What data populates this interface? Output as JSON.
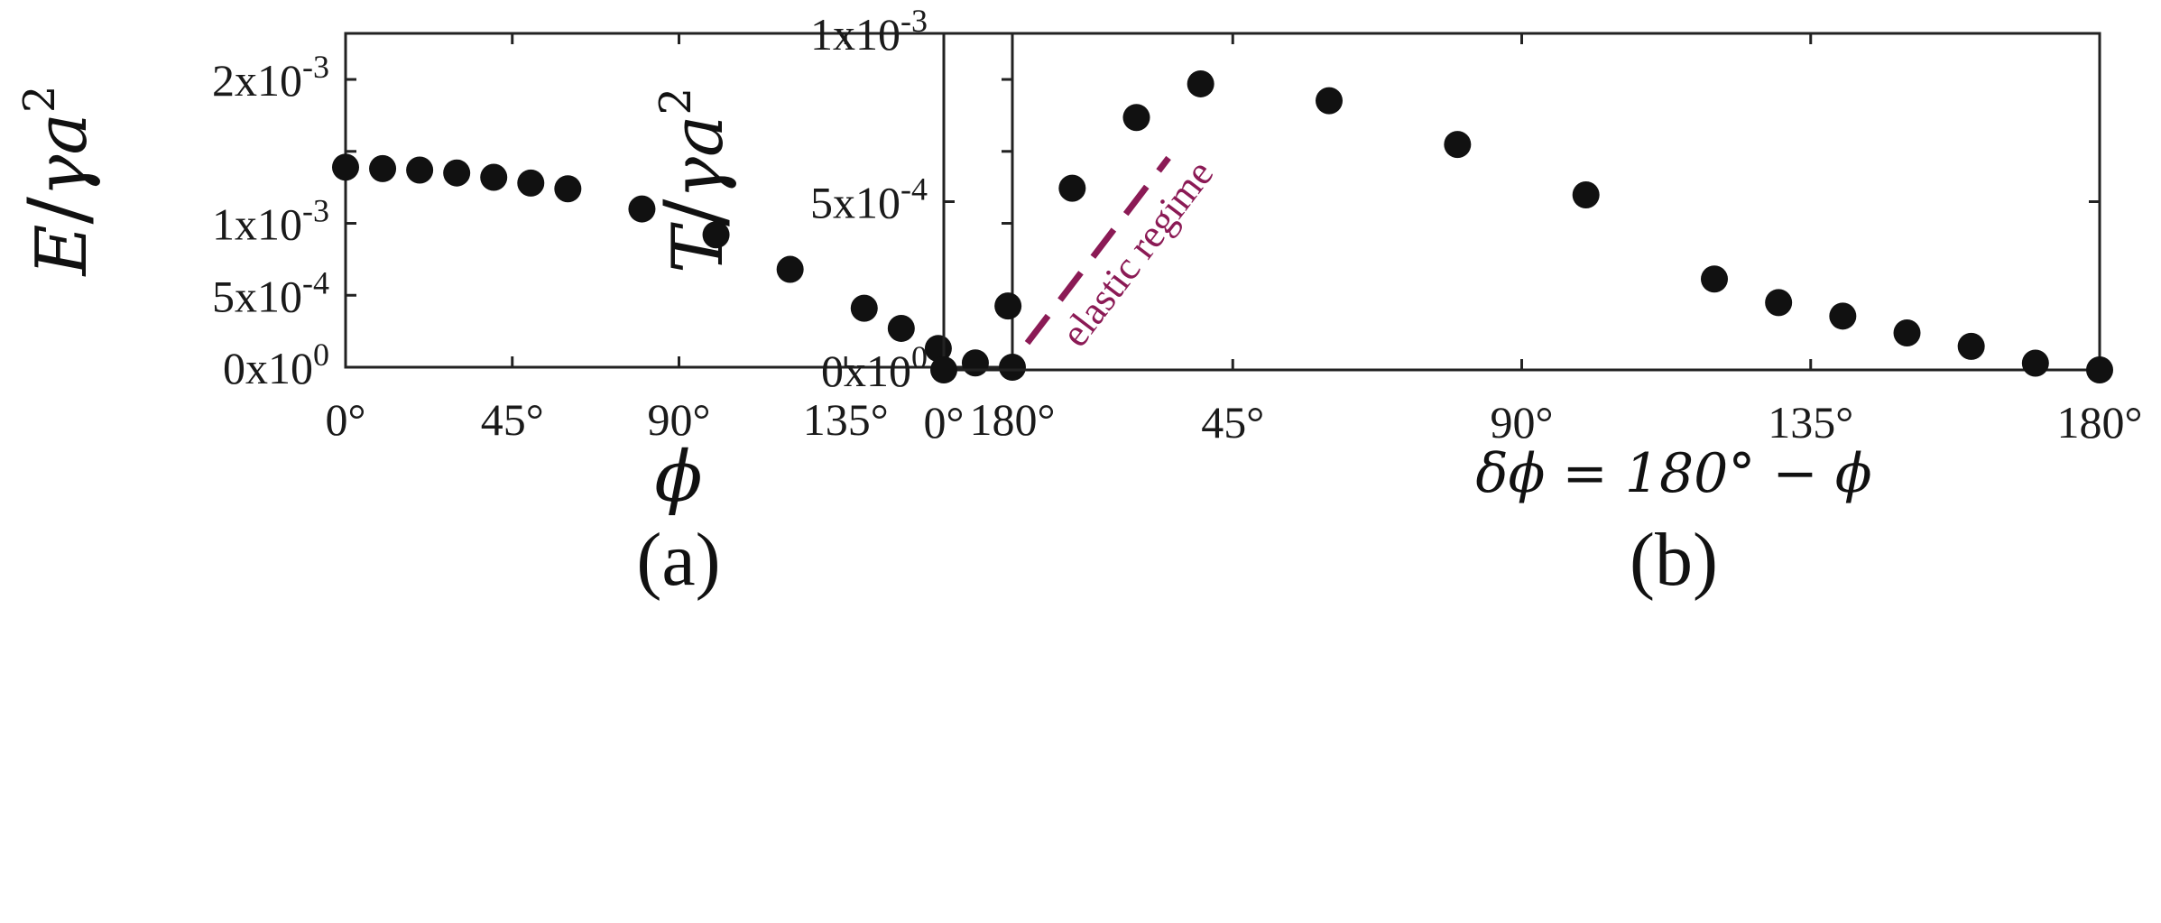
{
  "colors": {
    "marker": "#111111",
    "frame": "#222222",
    "annotation": "#8b1a55"
  },
  "chart_data": [
    {
      "type": "scatter",
      "panel_label": "(a)",
      "xlabel": "ϕ",
      "ylabel_main": "E",
      "ylabel_denom": "γa",
      "ylabel_exp": "2",
      "xlim": [
        0,
        180
      ],
      "ylim": [
        0,
        0.00232
      ],
      "x_ticks": [
        {
          "value": 0,
          "label": "0°"
        },
        {
          "value": 45,
          "label": "45°"
        },
        {
          "value": 90,
          "label": "90°"
        },
        {
          "value": 135,
          "label": "135°"
        },
        {
          "value": 180,
          "label": "180°"
        }
      ],
      "y_ticks": [
        {
          "value": 0,
          "mant": "0x10",
          "exp": "0"
        },
        {
          "value": 0.0005,
          "mant": "5x10",
          "exp": "-4"
        },
        {
          "value": 0.001,
          "mant": "1x10",
          "exp": "-3"
        },
        {
          "value": 0.0015,
          "mant": "",
          "exp": ""
        },
        {
          "value": 0.002,
          "mant": "2x10",
          "exp": "-3"
        }
      ],
      "x": [
        0,
        10,
        20,
        30,
        40,
        50,
        60,
        80,
        100,
        120,
        140,
        150,
        160,
        170,
        180
      ],
      "y": [
        0.00139,
        0.00138,
        0.00137,
        0.00135,
        0.00132,
        0.00128,
        0.00124,
        0.0011,
        0.00092,
        0.00068,
        0.00041,
        0.00027,
        0.00013,
        3e-05,
        0.0
      ]
    },
    {
      "type": "scatter",
      "panel_label": "(b)",
      "xlabel": "δϕ = 180° − ϕ",
      "ylabel_main": "T",
      "ylabel_denom": "γa",
      "ylabel_exp": "2",
      "xlim": [
        0,
        180
      ],
      "ylim": [
        0,
        0.001
      ],
      "x_ticks": [
        {
          "value": 0,
          "label": "0°"
        },
        {
          "value": 45,
          "label": "45°"
        },
        {
          "value": 90,
          "label": "90°"
        },
        {
          "value": 135,
          "label": "135°"
        },
        {
          "value": 180,
          "label": "180°"
        }
      ],
      "y_ticks": [
        {
          "value": 0,
          "mant": "0x10",
          "exp": "0"
        },
        {
          "value": 0.0005,
          "mant": "5x10",
          "exp": "-4"
        },
        {
          "value": 0.001,
          "mant": "1x10",
          "exp": "-3"
        }
      ],
      "x": [
        0,
        10,
        20,
        30,
        40,
        60,
        80,
        100,
        120,
        130,
        140,
        150,
        160,
        170,
        180
      ],
      "y": [
        0.0,
        0.00019,
        0.00054,
        0.00075,
        0.00085,
        0.0008,
        0.00067,
        0.00052,
        0.00027,
        0.0002,
        0.00016,
        0.00011,
        7e-05,
        2e-05,
        0.0
      ],
      "annotation": {
        "text": "elastic regime",
        "line_from": {
          "x": 13,
          "y": 8e-05
        },
        "line_to": {
          "x": 35,
          "y": 0.00063
        }
      }
    }
  ]
}
